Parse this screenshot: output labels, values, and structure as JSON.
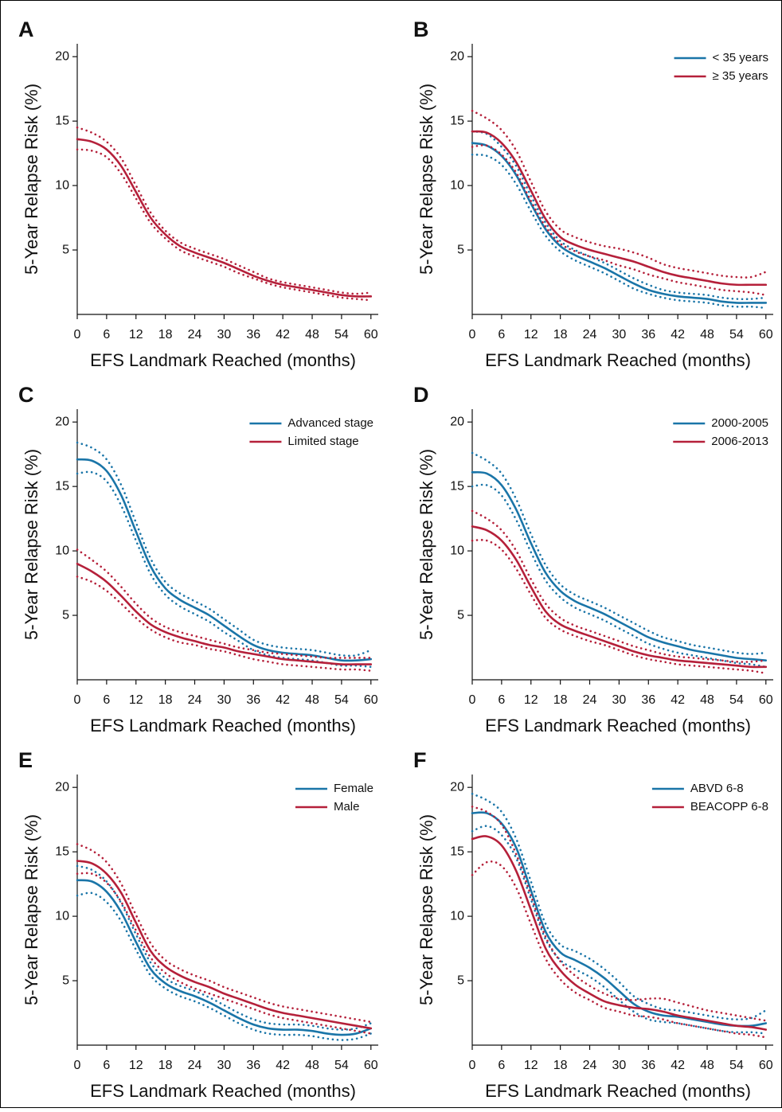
{
  "chart_data": [
    {
      "type": "line",
      "panel": "A",
      "ylabel": "5-Year Relapse Risk (%)",
      "xlabel": "EFS Landmark Reached (months)",
      "x": [
        0,
        3,
        6,
        9,
        12,
        15,
        18,
        21,
        24,
        27,
        30,
        33,
        36,
        39,
        42,
        45,
        48,
        51,
        54,
        57,
        60
      ],
      "xlim": [
        0,
        61.5
      ],
      "xticks": [
        0,
        6,
        12,
        18,
        24,
        30,
        36,
        42,
        48,
        54,
        60
      ],
      "ylim": [
        0,
        21
      ],
      "yticks": [
        5,
        10,
        15,
        20
      ],
      "legend": "top-right",
      "series": [
        {
          "color": "#b5203a",
          "values": [
            13.6,
            13.4,
            12.8,
            11.5,
            9.5,
            7.5,
            6.2,
            5.3,
            4.8,
            4.4,
            4.0,
            3.5,
            3.0,
            2.6,
            2.3,
            2.1,
            1.9,
            1.7,
            1.5,
            1.4,
            1.4
          ],
          "lower": [
            12.8,
            12.7,
            12.2,
            10.9,
            9.0,
            7.1,
            5.9,
            5.0,
            4.5,
            4.1,
            3.7,
            3.2,
            2.8,
            2.4,
            2.1,
            1.9,
            1.7,
            1.5,
            1.3,
            1.2,
            1.1
          ],
          "upper": [
            14.5,
            14.1,
            13.4,
            12.1,
            10.0,
            7.9,
            6.5,
            5.6,
            5.1,
            4.7,
            4.3,
            3.8,
            3.3,
            2.8,
            2.5,
            2.3,
            2.1,
            1.9,
            1.7,
            1.6,
            1.7
          ]
        }
      ]
    },
    {
      "type": "line",
      "panel": "B",
      "ylabel": "5-Year Relapse Risk (%)",
      "xlabel": "EFS Landmark Reached (months)",
      "x": [
        0,
        3,
        6,
        9,
        12,
        15,
        18,
        21,
        24,
        27,
        30,
        33,
        36,
        39,
        42,
        45,
        48,
        51,
        54,
        57,
        60
      ],
      "xlim": [
        0,
        61.5
      ],
      "xticks": [
        0,
        6,
        12,
        18,
        24,
        30,
        36,
        42,
        48,
        54,
        60
      ],
      "ylim": [
        0,
        21
      ],
      "yticks": [
        5,
        10,
        15,
        20
      ],
      "legend": "top-right",
      "series": [
        {
          "name": "< 35 years",
          "color": "#1a75a8",
          "values": [
            13.3,
            13.1,
            12.3,
            10.8,
            8.6,
            6.6,
            5.3,
            4.6,
            4.1,
            3.6,
            3.0,
            2.4,
            1.9,
            1.6,
            1.4,
            1.3,
            1.2,
            1.0,
            0.9,
            0.9,
            0.9
          ],
          "lower": [
            12.4,
            12.3,
            11.6,
            10.1,
            8.0,
            6.1,
            4.9,
            4.2,
            3.7,
            3.2,
            2.6,
            2.0,
            1.6,
            1.3,
            1.1,
            1.0,
            0.9,
            0.7,
            0.6,
            0.6,
            0.5
          ],
          "upper": [
            14.2,
            14.0,
            13.0,
            11.5,
            9.2,
            7.1,
            5.7,
            5.0,
            4.5,
            4.0,
            3.4,
            2.8,
            2.3,
            1.9,
            1.7,
            1.6,
            1.5,
            1.3,
            1.2,
            1.2,
            1.3
          ]
        },
        {
          "name": "≥ 35 years",
          "color": "#b5203a",
          "values": [
            14.2,
            14.1,
            13.3,
            11.8,
            9.6,
            7.4,
            6.0,
            5.4,
            5.0,
            4.7,
            4.4,
            4.1,
            3.7,
            3.3,
            3.0,
            2.8,
            2.6,
            2.4,
            2.3,
            2.3,
            2.3
          ],
          "lower": [
            13.0,
            13.1,
            12.4,
            11.0,
            8.8,
            6.8,
            5.5,
            4.9,
            4.5,
            4.2,
            3.8,
            3.5,
            3.1,
            2.8,
            2.5,
            2.3,
            2.1,
            1.9,
            1.8,
            1.7,
            1.5
          ],
          "upper": [
            15.8,
            15.2,
            14.3,
            12.7,
            10.3,
            8.0,
            6.6,
            6.0,
            5.6,
            5.3,
            5.1,
            4.8,
            4.4,
            3.9,
            3.6,
            3.4,
            3.2,
            3.0,
            2.9,
            2.9,
            3.3
          ]
        }
      ]
    },
    {
      "type": "line",
      "panel": "C",
      "ylabel": "5-Year Relapse Risk (%)",
      "xlabel": "EFS Landmark Reached (months)",
      "x": [
        0,
        3,
        6,
        9,
        12,
        15,
        18,
        21,
        24,
        27,
        30,
        33,
        36,
        39,
        42,
        45,
        48,
        51,
        54,
        57,
        60
      ],
      "xlim": [
        0,
        61.5
      ],
      "xticks": [
        0,
        6,
        12,
        18,
        24,
        30,
        36,
        42,
        48,
        54,
        60
      ],
      "ylim": [
        0,
        21
      ],
      "yticks": [
        5,
        10,
        15,
        20
      ],
      "legend": "top-right",
      "series": [
        {
          "name": "Advanced stage",
          "color": "#1a75a8",
          "values": [
            17.1,
            17.0,
            16.2,
            14.3,
            11.5,
            8.8,
            7.1,
            6.2,
            5.6,
            5.0,
            4.2,
            3.4,
            2.7,
            2.3,
            2.1,
            2.0,
            1.9,
            1.7,
            1.5,
            1.5,
            1.6
          ],
          "lower": [
            16.0,
            16.1,
            15.4,
            13.5,
            10.8,
            8.2,
            6.6,
            5.7,
            5.1,
            4.5,
            3.7,
            3.0,
            2.3,
            1.9,
            1.7,
            1.6,
            1.5,
            1.3,
            1.1,
            1.1,
            1.0
          ],
          "upper": [
            18.4,
            18.0,
            17.1,
            15.1,
            12.2,
            9.4,
            7.6,
            6.7,
            6.1,
            5.5,
            4.7,
            3.9,
            3.1,
            2.7,
            2.5,
            2.4,
            2.3,
            2.1,
            1.9,
            1.9,
            2.3
          ]
        },
        {
          "name": "Limited stage",
          "color": "#b5203a",
          "values": [
            9.0,
            8.4,
            7.6,
            6.5,
            5.3,
            4.3,
            3.7,
            3.3,
            3.0,
            2.7,
            2.5,
            2.2,
            2.0,
            1.8,
            1.6,
            1.5,
            1.4,
            1.3,
            1.2,
            1.2,
            1.2
          ],
          "lower": [
            8.0,
            7.6,
            6.9,
            5.9,
            4.8,
            3.9,
            3.3,
            2.9,
            2.7,
            2.4,
            2.2,
            1.9,
            1.6,
            1.4,
            1.2,
            1.1,
            1.0,
            0.9,
            0.8,
            0.8,
            0.7
          ],
          "upper": [
            10.1,
            9.3,
            8.4,
            7.2,
            5.9,
            4.8,
            4.1,
            3.7,
            3.4,
            3.1,
            2.8,
            2.5,
            2.3,
            2.1,
            2.0,
            1.9,
            1.8,
            1.7,
            1.7,
            1.7,
            1.7
          ]
        }
      ]
    },
    {
      "type": "line",
      "panel": "D",
      "ylabel": "5-Year Relapse Risk (%)",
      "xlabel": "EFS Landmark Reached (months)",
      "x": [
        0,
        3,
        6,
        9,
        12,
        15,
        18,
        21,
        24,
        27,
        30,
        33,
        36,
        39,
        42,
        45,
        48,
        51,
        54,
        57,
        60
      ],
      "xlim": [
        0,
        61.5
      ],
      "xticks": [
        0,
        6,
        12,
        18,
        24,
        30,
        36,
        42,
        48,
        54,
        60
      ],
      "ylim": [
        0,
        21
      ],
      "yticks": [
        5,
        10,
        15,
        20
      ],
      "legend": "top-right",
      "series": [
        {
          "name": "2000-2005",
          "color": "#1a75a8",
          "values": [
            16.1,
            16.0,
            15.1,
            13.2,
            10.6,
            8.3,
            6.9,
            6.1,
            5.6,
            5.1,
            4.5,
            3.9,
            3.3,
            2.9,
            2.6,
            2.3,
            2.1,
            1.9,
            1.7,
            1.6,
            1.5
          ],
          "lower": [
            15.0,
            15.1,
            14.3,
            12.4,
            9.9,
            7.7,
            6.4,
            5.6,
            5.1,
            4.6,
            4.0,
            3.4,
            2.8,
            2.4,
            2.1,
            1.9,
            1.7,
            1.5,
            1.3,
            1.2,
            1.0
          ],
          "upper": [
            17.6,
            17.0,
            16.0,
            14.0,
            11.3,
            8.9,
            7.4,
            6.6,
            6.1,
            5.6,
            5.0,
            4.4,
            3.8,
            3.3,
            3.0,
            2.7,
            2.5,
            2.3,
            2.1,
            2.0,
            2.1
          ]
        },
        {
          "name": "2006-2013",
          "color": "#b5203a",
          "values": [
            11.9,
            11.6,
            10.8,
            9.3,
            7.2,
            5.3,
            4.3,
            3.8,
            3.4,
            3.0,
            2.6,
            2.2,
            1.9,
            1.7,
            1.5,
            1.4,
            1.3,
            1.2,
            1.1,
            1.0,
            1.0
          ],
          "lower": [
            10.8,
            10.8,
            10.1,
            8.6,
            6.6,
            4.8,
            3.9,
            3.4,
            3.0,
            2.7,
            2.3,
            1.9,
            1.6,
            1.4,
            1.2,
            1.1,
            1.0,
            0.9,
            0.8,
            0.7,
            0.5
          ],
          "upper": [
            13.1,
            12.5,
            11.6,
            10.0,
            7.8,
            5.9,
            4.8,
            4.2,
            3.8,
            3.4,
            3.0,
            2.6,
            2.3,
            2.0,
            1.8,
            1.7,
            1.6,
            1.5,
            1.4,
            1.4,
            1.5
          ]
        }
      ]
    },
    {
      "type": "line",
      "panel": "E",
      "ylabel": "5-Year Relapse Risk (%)",
      "xlabel": "EFS Landmark Reached (months)",
      "x": [
        0,
        3,
        6,
        9,
        12,
        15,
        18,
        21,
        24,
        27,
        30,
        33,
        36,
        39,
        42,
        45,
        48,
        51,
        54,
        57,
        60
      ],
      "xlim": [
        0,
        61.5
      ],
      "xticks": [
        0,
        6,
        12,
        18,
        24,
        30,
        36,
        42,
        48,
        54,
        60
      ],
      "ylim": [
        0,
        21
      ],
      "yticks": [
        5,
        10,
        15,
        20
      ],
      "legend": "top-right",
      "series": [
        {
          "name": "Female",
          "color": "#1a75a8",
          "values": [
            12.8,
            12.7,
            11.9,
            10.3,
            8.0,
            5.9,
            4.8,
            4.2,
            3.8,
            3.3,
            2.7,
            2.1,
            1.6,
            1.3,
            1.2,
            1.2,
            1.1,
            0.9,
            0.8,
            0.9,
            1.3
          ],
          "lower": [
            11.6,
            11.8,
            11.1,
            9.6,
            7.4,
            5.4,
            4.4,
            3.8,
            3.4,
            2.9,
            2.3,
            1.7,
            1.2,
            0.9,
            0.8,
            0.8,
            0.7,
            0.5,
            0.4,
            0.5,
            0.9
          ],
          "upper": [
            13.9,
            13.6,
            12.7,
            11.0,
            8.6,
            6.4,
            5.2,
            4.6,
            4.2,
            3.7,
            3.1,
            2.5,
            2.0,
            1.7,
            1.6,
            1.6,
            1.5,
            1.3,
            1.2,
            1.3,
            1.7
          ]
        },
        {
          "name": "Male",
          "color": "#b5203a",
          "values": [
            14.3,
            14.1,
            13.3,
            11.8,
            9.5,
            7.3,
            6.1,
            5.4,
            4.9,
            4.5,
            4.0,
            3.6,
            3.2,
            2.8,
            2.5,
            2.3,
            2.1,
            1.9,
            1.7,
            1.5,
            1.3
          ],
          "lower": [
            13.3,
            13.3,
            12.6,
            11.1,
            8.9,
            6.8,
            5.6,
            4.9,
            4.4,
            4.0,
            3.6,
            3.2,
            2.8,
            2.4,
            2.1,
            1.9,
            1.7,
            1.5,
            1.3,
            1.1,
            0.9
          ],
          "upper": [
            15.6,
            15.1,
            14.2,
            12.5,
            10.1,
            7.9,
            6.6,
            5.9,
            5.4,
            5.0,
            4.5,
            4.1,
            3.7,
            3.3,
            3.0,
            2.8,
            2.6,
            2.4,
            2.2,
            2.0,
            1.8
          ]
        }
      ]
    },
    {
      "type": "line",
      "panel": "F",
      "ylabel": "5-Year Relapse Risk (%)",
      "xlabel": "EFS Landmark Reached (months)",
      "x": [
        0,
        3,
        6,
        9,
        12,
        15,
        18,
        21,
        24,
        27,
        30,
        33,
        36,
        39,
        42,
        45,
        48,
        51,
        54,
        57,
        60
      ],
      "xlim": [
        0,
        61.5
      ],
      "xticks": [
        0,
        6,
        12,
        18,
        24,
        30,
        36,
        42,
        48,
        54,
        60
      ],
      "ylim": [
        0,
        21
      ],
      "yticks": [
        5,
        10,
        15,
        20
      ],
      "legend": "top-right",
      "series": [
        {
          "name": "ABVD 6-8",
          "color": "#1a75a8",
          "values": [
            18.0,
            18.0,
            17.2,
            15.3,
            12.0,
            8.8,
            7.2,
            6.6,
            6.0,
            5.2,
            4.2,
            3.2,
            2.6,
            2.3,
            2.2,
            2.0,
            1.8,
            1.6,
            1.5,
            1.5,
            1.7
          ],
          "lower": [
            16.6,
            17.0,
            16.3,
            14.5,
            11.3,
            8.2,
            6.6,
            5.9,
            5.3,
            4.5,
            3.5,
            2.6,
            2.0,
            1.8,
            1.7,
            1.5,
            1.3,
            1.1,
            1.0,
            1.0,
            0.9
          ],
          "upper": [
            19.5,
            19.0,
            18.1,
            16.0,
            12.7,
            9.4,
            7.8,
            7.3,
            6.7,
            5.9,
            4.9,
            3.8,
            3.2,
            2.8,
            2.7,
            2.5,
            2.3,
            2.1,
            2.0,
            2.1,
            2.7
          ]
        },
        {
          "name": "BEACOPP 6-8",
          "color": "#b5203a",
          "values": [
            16.0,
            16.2,
            15.5,
            13.5,
            10.5,
            7.5,
            5.8,
            4.7,
            4.0,
            3.4,
            3.1,
            2.9,
            2.8,
            2.6,
            2.3,
            2.1,
            1.9,
            1.7,
            1.5,
            1.4,
            1.2
          ],
          "lower": [
            13.2,
            14.2,
            13.9,
            12.2,
            9.4,
            6.7,
            5.1,
            4.1,
            3.5,
            2.9,
            2.6,
            2.3,
            2.2,
            2.0,
            1.7,
            1.5,
            1.3,
            1.1,
            0.9,
            0.8,
            0.6
          ],
          "upper": [
            18.5,
            18.1,
            17.1,
            14.8,
            11.6,
            8.4,
            6.5,
            5.4,
            4.6,
            4.0,
            3.6,
            3.5,
            3.6,
            3.6,
            3.3,
            3.0,
            2.7,
            2.5,
            2.3,
            2.1,
            1.9
          ]
        }
      ]
    }
  ]
}
